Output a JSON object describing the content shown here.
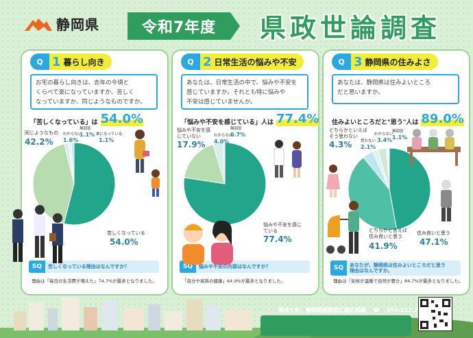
{
  "header": {
    "logo_text": "静岡県",
    "era": "令和7年度",
    "title": "県政世論調査"
  },
  "colors": {
    "teal": "#22a58a",
    "light_green": "#b7dcb0",
    "light_blue": "#bfe5f0",
    "accent_blue": "#2aa9e0",
    "accent_yellow": "#f2ec3a"
  },
  "panels": [
    {
      "q_label": "Q",
      "q_num": "1",
      "q_title": "暮らし向き",
      "question_lines": [
        "お宅の暮らし向きは、去年の今頃と",
        "くらべて楽になっていますか、苦しく",
        "なっていますか、同じようなものですか。"
      ],
      "headline_label": "「苦しくなっている」は",
      "headline_value": "54.0%",
      "labels": [
        {
          "name": "同じようなもの",
          "value": "42.2%"
        },
        {
          "name": "わからない",
          "value": "1.6%"
        },
        {
          "name": "無回答",
          "value": "1.1%"
        },
        {
          "name": "楽になっている",
          "value": "1.1%"
        },
        {
          "name": "苦しくなっている",
          "value": "54.0%"
        }
      ],
      "sq_tag": "SQ",
      "sq_text": "苦しくなっている理由はなんですか？",
      "reason": "理由は「毎日の生活費が増えた」74.7%が最多となりました。"
    },
    {
      "q_label": "Q",
      "q_num": "2",
      "q_title": "日常生活の悩みや不安",
      "question_lines": [
        "あなたは、日常生活の中で、悩みや不安を",
        "感じていますか。それとも特に悩みや",
        "不安は感じていませんか。"
      ],
      "headline_label": "「悩みや不安を感じている」人は",
      "headline_value": "77.4%",
      "labels": [
        {
          "name": "悩みや不安を感じていない",
          "value": "17.9%"
        },
        {
          "name": "わからない",
          "value": "4.0%"
        },
        {
          "name": "無回答",
          "value": "0.7%"
        },
        {
          "name": "悩みや不安を感じている",
          "value": "77.4%"
        }
      ],
      "sq_tag": "SQ",
      "sq_text": "悩みや不安の内容はなんですか？",
      "reason": "「自分や家族の健康」64.9%が最多となりました。"
    },
    {
      "q_label": "Q",
      "q_num": "3",
      "q_title": "静岡県の住みよさ",
      "question_lines": [
        "あなたは、静岡県は住みよいところ",
        "だと思いますか。"
      ],
      "headline_label": "住みよいところだと\"思う\"人は",
      "headline_value": "89.0%",
      "labels": [
        {
          "name": "どちらかといえば\nそう思わない",
          "value": "4.3%"
        },
        {
          "name": "思わない",
          "value": "2.1%"
        },
        {
          "name": "わからない",
          "value": "3.4%"
        },
        {
          "name": "無回答",
          "value": "1.1%"
        },
        {
          "name": "住み良いと思う",
          "value": "47.1%"
        },
        {
          "name": "どちらかと言えば\n住み良いと思う",
          "value": "41.9%"
        }
      ],
      "sq_tag": "SQ",
      "sq_text": "あなたが、静岡県は住みよいところだと思う\n理由はなんですか。",
      "reason": "理由は「気候が温暖で自然が豊か」84.7%が最多となりました。"
    }
  ],
  "chart_data": [
    {
      "type": "pie",
      "title": "暮らし向き",
      "categories": [
        "苦しくなっている",
        "同じようなもの",
        "わからない",
        "無回答",
        "楽になっている"
      ],
      "values": [
        54.0,
        42.2,
        1.6,
        1.1,
        1.1
      ]
    },
    {
      "type": "pie",
      "title": "日常生活の悩みや不安",
      "categories": [
        "悩みや不安を感じている",
        "悩みや不安を感じていない",
        "わからない",
        "無回答"
      ],
      "values": [
        77.4,
        17.9,
        4.0,
        0.7
      ]
    },
    {
      "type": "pie",
      "title": "静岡県の住みよさ",
      "categories": [
        "住み良いと思う",
        "どちらかと言えば住み良いと思う",
        "どちらかといえばそう思わない",
        "思わない",
        "わからない",
        "無回答"
      ],
      "values": [
        47.1,
        41.9,
        4.3,
        2.1,
        3.4,
        1.1
      ]
    }
  ],
  "footer": {
    "contact_label": "問合せ先：静岡県総務部広聴広報課",
    "phone": "054-221-2235"
  }
}
